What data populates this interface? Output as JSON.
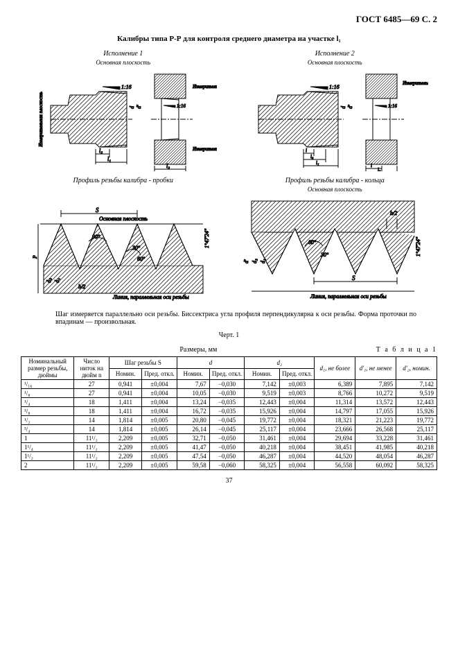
{
  "header": "ГОСТ 6485—69 С. 2",
  "title": "Калибры типа Р-Р для контроля среднего диаметра на участке l₁",
  "exec1": "Исполнение 1",
  "exec2": "Исполнение 2",
  "base_plane": "Основная плоскость",
  "meas_planes": "Измерительные плоскости",
  "meas_plane": "Измерительная плоскость",
  "taper": "1:16",
  "profile_plug": "Профиль резьбы калибра - пробки",
  "profile_ring": "Профиль резьбы калибра - кольца",
  "line_parallel": "Линия, параллельная оси резьбы",
  "note": "Шаг измеряется параллельно оси резьбы. Биссектриса угла профиля перпендикулярна к оси резьбы. Форма проточки по впадинам — произвольная.",
  "fig": "Черт. 1",
  "table_label": "Т а б л и ц а  1",
  "dims": "Размеры,   мм",
  "headers": {
    "col1": "Номинальный размер резьбы, дюймы",
    "col2": "Число ниток на дюйм n",
    "col3": "Шаг резьбы S",
    "col4": "d",
    "col5": "d₂",
    "col6": "d₁, не более",
    "col7": "d'₁, не менее",
    "col8": "d'₂, номин.",
    "nom": "Номин.",
    "tol": "Пред. откл."
  },
  "rows": [
    {
      "sz": "¹/₁₆",
      "n": "27",
      "s_n": "0,941",
      "s_t": "±0,004",
      "d_n": "7,67",
      "d_t": "−0,030",
      "d2_n": "7,142",
      "d2_t": "±0,003",
      "d1": "6,389",
      "dp1": "7,895",
      "dp2": "7,142"
    },
    {
      "sz": "¹/₈",
      "n": "27",
      "s_n": "0,941",
      "s_t": "±0,004",
      "d_n": "10,05",
      "d_t": "−0,030",
      "d2_n": "9,519",
      "d2_t": "±0,003",
      "d1": "8,766",
      "dp1": "10,272",
      "dp2": "9,519"
    },
    {
      "sz": "¹/₄",
      "n": "18",
      "s_n": "1,411",
      "s_t": "±0,004",
      "d_n": "13,24",
      "d_t": "−0,035",
      "d2_n": "12,443",
      "d2_t": "±0,004",
      "d1": "11,314",
      "dp1": "13,572",
      "dp2": "12,443"
    },
    {
      "sz": "³/₈",
      "n": "18",
      "s_n": "1,411",
      "s_t": "±0,004",
      "d_n": "16,72",
      "d_t": "−0,035",
      "d2_n": "15,926",
      "d2_t": "±0,004",
      "d1": "14,797",
      "dp1": "17,055",
      "dp2": "15,926"
    },
    {
      "sz": "¹/₂",
      "n": "14",
      "s_n": "1,814",
      "s_t": "±0,005",
      "d_n": "20,80",
      "d_t": "−0,045",
      "d2_n": "19,772",
      "d2_t": "±0,004",
      "d1": "18,321",
      "dp1": "21,223",
      "dp2": "19,772"
    },
    {
      "sz": "³/₄",
      "n": "14",
      "s_n": "1,814",
      "s_t": "±0,005",
      "d_n": "26,14",
      "d_t": "−0,045",
      "d2_n": "25,117",
      "d2_t": "±0,004",
      "d1": "23,666",
      "dp1": "26,568",
      "dp2": "25,117"
    },
    {
      "sz": "1",
      "n": "11¹/₂",
      "s_n": "2,209",
      "s_t": "±0,005",
      "d_n": "32,71",
      "d_t": "−0,050",
      "d2_n": "31,461",
      "d2_t": "±0,004",
      "d1": "29,694",
      "dp1": "33,228",
      "dp2": "31,461"
    },
    {
      "sz": "1¹/₄",
      "n": "11¹/₂",
      "s_n": "2,209",
      "s_t": "±0,005",
      "d_n": "41,47",
      "d_t": "−0,050",
      "d2_n": "40,218",
      "d2_t": "±0,004",
      "d1": "38,451",
      "dp1": "41,985",
      "dp2": "40,218"
    },
    {
      "sz": "1¹/₂",
      "n": "11¹/₂",
      "s_n": "2,209",
      "s_t": "±0,005",
      "d_n": "47,54",
      "d_t": "−0,050",
      "d2_n": "46,287",
      "d2_t": "±0,004",
      "d1": "44,520",
      "dp1": "48,054",
      "dp2": "46,287"
    },
    {
      "sz": "2",
      "n": "11¹/₂",
      "s_n": "2,209",
      "s_t": "±0,005",
      "d_n": "59,58",
      "d_t": "−0,060",
      "d2_n": "58,325",
      "d2_t": "±0,004",
      "d1": "56,558",
      "dp1": "60,092",
      "dp2": "58,325"
    }
  ],
  "page": "37",
  "svg": {
    "stroke": "#000",
    "hatch": "#000",
    "angle60": "60°",
    "angle90": "90°",
    "angle30": "30°",
    "S": "S",
    "b2": "b/2",
    "d": "d",
    "d1": "d₁",
    "d2": "d₂",
    "dp": "d'",
    "dp1": "d'₁",
    "dp2": "d'₂",
    "p": "P",
    "l": "l",
    "l1": "l₁",
    "l2": "l₂",
    "l3": "l₃",
    "rot": "Измерительная плоскость",
    "tol_angle": "1°47'24\""
  }
}
